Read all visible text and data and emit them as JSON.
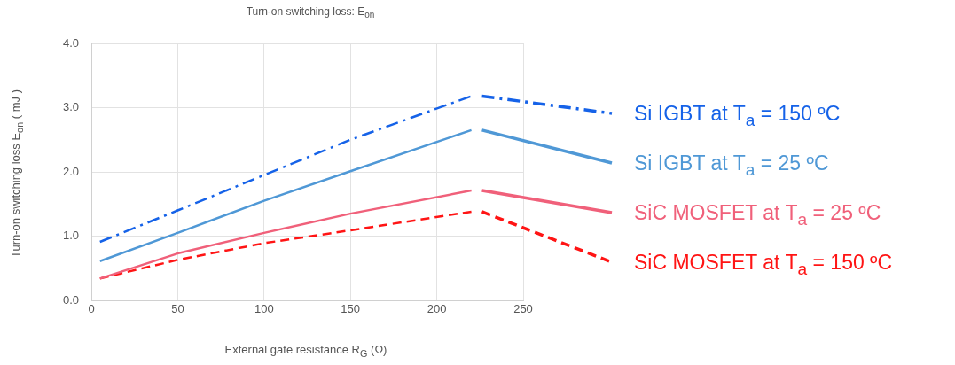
{
  "chart_data": {
    "type": "line",
    "title": "Turn-on switching loss: E$_{on}$",
    "xlabel": "External gate resistance R$_{G}$ (Ω)",
    "ylabel": "Turn-on switching loss  E$_{on}$ ( mJ )",
    "x": [
      5,
      50,
      100,
      150,
      220
    ],
    "series": [
      {
        "name": "Si IGBT at T$_{a}$ = 150 ºC",
        "color": "#1562e8",
        "line_style": "dashdot",
        "values": [
          0.91,
          1.4,
          1.95,
          2.5,
          3.18
        ]
      },
      {
        "name": "Si IGBT at T$_{a}$ = 25 ºC",
        "color": "#4f98d6",
        "line_style": "solid",
        "values": [
          0.61,
          1.05,
          1.55,
          2.01,
          2.65
        ]
      },
      {
        "name": "SiC MOSFET at T$_{a}$ = 25 ºC",
        "color": "#f0607a",
        "line_style": "solid",
        "values": [
          0.34,
          0.73,
          1.05,
          1.35,
          1.71
        ]
      },
      {
        "name": "SiC MOSFET at T$_{a}$ = 150 ºC",
        "color": "#ff1414",
        "line_style": "dashed",
        "values": [
          0.34,
          0.63,
          0.89,
          1.09,
          1.38
        ]
      }
    ],
    "xlim": [
      0,
      250
    ],
    "xticks": [
      0,
      50,
      100,
      150,
      200,
      250
    ],
    "ylim": [
      0,
      4
    ],
    "yticks": [
      {
        "value": 0,
        "label": "0.0"
      },
      {
        "value": 1,
        "label": "1.0"
      },
      {
        "value": 2,
        "label": "2.0"
      },
      {
        "value": 3,
        "label": "3.0"
      },
      {
        "value": 4,
        "label": "4.0"
      }
    ],
    "grid": true,
    "legend": "right",
    "marker": "none"
  }
}
